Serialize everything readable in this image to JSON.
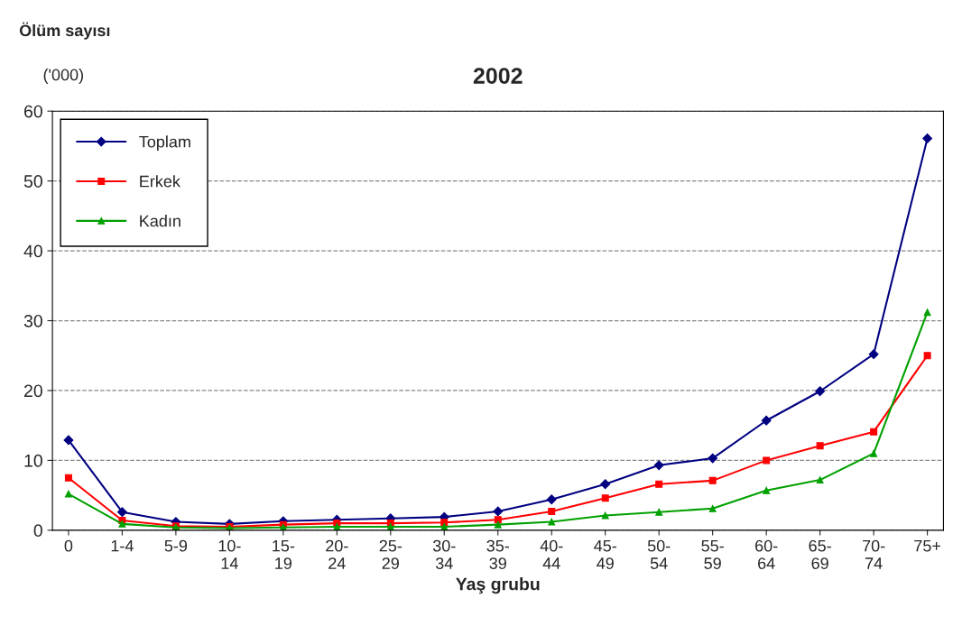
{
  "chart_data": {
    "type": "line",
    "title": "2002",
    "ylabel": "Ölüm sayısı",
    "xlabel": "Yaş grubu",
    "annotations": [
      "('000)"
    ],
    "categories": [
      "0",
      "1-4",
      "5-9",
      "10-\n14",
      "15-\n19",
      "20-\n24",
      "25-\n29",
      "30-\n34",
      "35-\n39",
      "40-\n44",
      "45-\n49",
      "50-\n54",
      "55-\n59",
      "60-\n64",
      "65-\n69",
      "70-\n74",
      "75+"
    ],
    "series": [
      {
        "name": "Toplam",
        "color": "#000080",
        "marker": "diamond",
        "values": [
          12.9,
          2.6,
          1.2,
          0.9,
          1.3,
          1.5,
          1.7,
          1.9,
          2.7,
          4.4,
          6.6,
          9.3,
          10.3,
          15.7,
          19.9,
          25.2,
          56.1
        ]
      },
      {
        "name": "Erkek",
        "color": "#ff0000",
        "marker": "square",
        "values": [
          7.5,
          1.4,
          0.6,
          0.5,
          0.8,
          1.0,
          1.0,
          1.1,
          1.5,
          2.7,
          4.6,
          6.6,
          7.1,
          10.0,
          12.1,
          14.1,
          25.0
        ]
      },
      {
        "name": "Kadın",
        "color": "#00a000",
        "marker": "triangle",
        "values": [
          5.2,
          0.9,
          0.4,
          0.3,
          0.4,
          0.5,
          0.5,
          0.5,
          0.8,
          1.2,
          2.1,
          2.6,
          3.1,
          5.7,
          7.2,
          11.0,
          31.2
        ]
      }
    ],
    "ylim": [
      0,
      60
    ],
    "yticks": [
      0,
      10,
      20,
      30,
      40,
      50,
      60
    ],
    "grid": "y",
    "legend": "top left",
    "line_style": "solid"
  }
}
